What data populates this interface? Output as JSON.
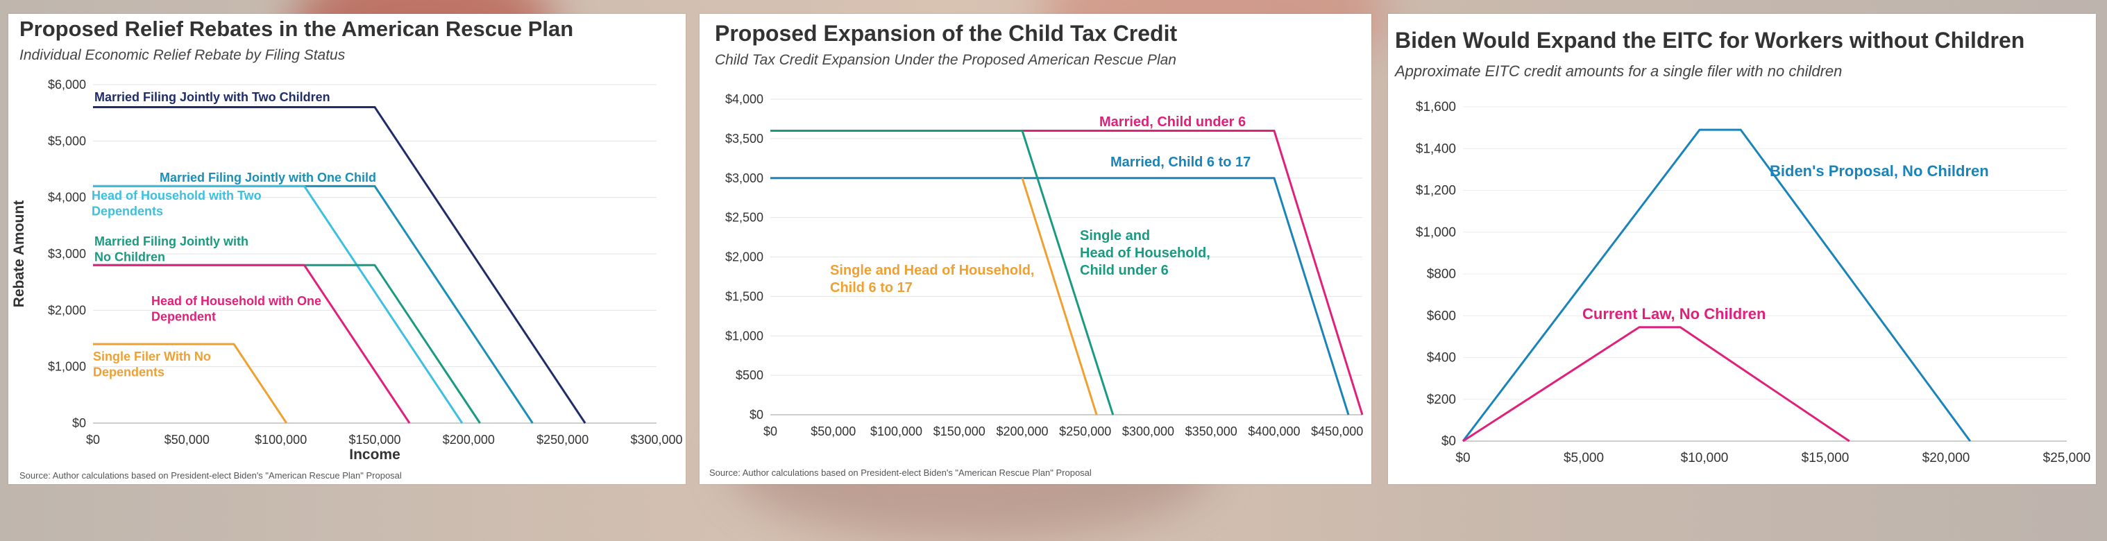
{
  "chart_data": [
    {
      "type": "line",
      "title": "Proposed Relief Rebates in the American Rescue Plan",
      "subtitle": "Individual Economic Relief Rebate by Filing Status",
      "xlabel": "Income",
      "ylabel": "Rebate Amount",
      "xlim": [
        0,
        300000
      ],
      "ylim": [
        0,
        6000
      ],
      "x_ticks": [
        "$0",
        "$50,000",
        "$100,000",
        "$150,000",
        "$200,000",
        "$250,000",
        "$300,000"
      ],
      "y_ticks": [
        "$0",
        "$1,000",
        "$2,000",
        "$3,000",
        "$4,000",
        "$5,000",
        "$6,000"
      ],
      "source": "Source: Author calculations based on President-elect Biden's \"American Rescue Plan\" Proposal",
      "series": [
        {
          "name": "Married Filing Jointly with Two Children",
          "color": "#1f2d6b",
          "x": [
            0,
            150000,
            262000
          ],
          "y": [
            5600,
            5600,
            0
          ]
        },
        {
          "name": "Married Filing Jointly with One Child",
          "color": "#1a8fb8",
          "x": [
            0,
            150000,
            234000
          ],
          "y": [
            4200,
            4200,
            0
          ]
        },
        {
          "name": "Head of Household with Two Dependents",
          "color": "#3cc0e0",
          "x": [
            0,
            112500,
            196500
          ],
          "y": [
            4200,
            4200,
            0
          ]
        },
        {
          "name": "Married Filing Jointly with No Children",
          "color": "#1a9a80",
          "x": [
            0,
            150000,
            206000
          ],
          "y": [
            2800,
            2800,
            0
          ]
        },
        {
          "name": "Head of Household with One Dependent",
          "color": "#e0207a",
          "x": [
            0,
            112500,
            168500
          ],
          "y": [
            2800,
            2800,
            0
          ]
        },
        {
          "name": "Single Filer With No Dependents",
          "color": "#f0a030",
          "x": [
            0,
            75000,
            103000
          ],
          "y": [
            1400,
            1400,
            0
          ]
        }
      ]
    },
    {
      "type": "line",
      "title": "Proposed Expansion of the Child Tax Credit",
      "subtitle": "Child Tax Credit Expansion Under the Proposed American Rescue Plan",
      "xlim": [
        0,
        470000
      ],
      "ylim": [
        0,
        4000
      ],
      "x_ticks": [
        "$0",
        "$50,000",
        "$100,000",
        "$150,000",
        "$200,000",
        "$250,000",
        "$300,000",
        "$350,000",
        "$400,000",
        "$450,000"
      ],
      "y_ticks": [
        "$0",
        "$500",
        "$1,000",
        "$1,500",
        "$2,000",
        "$2,500",
        "$3,000",
        "$3,500",
        "$4,000"
      ],
      "source": "Source: Author calculations based on President-elect Biden's \"American Rescue Plan\" Proposal",
      "series": [
        {
          "name": "Married,  Child under 6",
          "color": "#e0207a",
          "x": [
            0,
            400000,
            470000
          ],
          "y": [
            3600,
            3600,
            0
          ]
        },
        {
          "name": "Married, Child 6 to 17",
          "color": "#1a84b8",
          "x": [
            0,
            400000,
            459000
          ],
          "y": [
            3000,
            3000,
            0
          ]
        },
        {
          "name": "Single and Head of Household, Child under 6",
          "color": "#1a9a80",
          "x": [
            0,
            200000,
            272000
          ],
          "y": [
            3600,
            3600,
            0
          ]
        },
        {
          "name": "Single and Head of Household, Child 6 to 17",
          "color": "#f0a030",
          "x": [
            200000,
            259000
          ],
          "y": [
            3000,
            0
          ]
        }
      ]
    },
    {
      "type": "line",
      "title": "Biden Would Expand the EITC for Workers without Children",
      "subtitle": "Approximate EITC credit amounts for a single filer with no children",
      "xlim": [
        0,
        25000
      ],
      "ylim": [
        0,
        1600
      ],
      "x_ticks": [
        "$0",
        "$5,000",
        "$10,000",
        "$15,000",
        "$20,000",
        "$25,000"
      ],
      "y_ticks": [
        "$0",
        "$200",
        "$400",
        "$600",
        "$800",
        "$1,000",
        "$1,200",
        "$1,400",
        "$1,600"
      ],
      "series": [
        {
          "name": "Biden's Proposal, No Children",
          "color": "#1a84b8",
          "x": [
            0,
            9800,
            11500,
            21000
          ],
          "y": [
            0,
            1490,
            1490,
            0
          ]
        },
        {
          "name": "Current Law, No Children",
          "color": "#e0207a",
          "x": [
            0,
            7300,
            9000,
            16000
          ],
          "y": [
            0,
            545,
            545,
            0
          ]
        }
      ]
    }
  ]
}
